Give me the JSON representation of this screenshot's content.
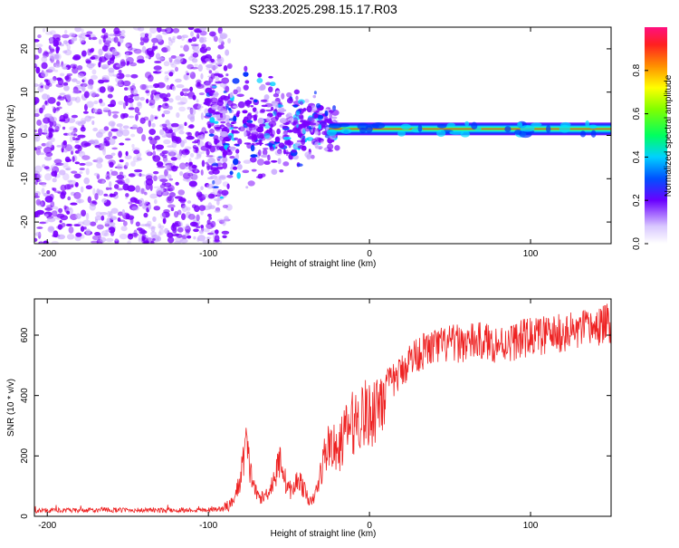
{
  "title": "S233.2025.298.15.17.R03",
  "colors": {
    "snr_line": "#ee2222",
    "band_core": "#ff1a1a",
    "noise_purple": "#7a00ff",
    "noise_light": "#c9a8ff"
  },
  "chart_data": [
    {
      "type": "heatmap",
      "name": "spectrogram",
      "title": "S233.2025.298.15.17.R03",
      "xlabel": "Height of straight line (km)",
      "ylabel": "Frequency (Hz)",
      "xlim": [
        -208,
        150
      ],
      "ylim": [
        -25,
        25
      ],
      "xticks": [
        -200,
        -100,
        0,
        100
      ],
      "yticks": [
        20,
        10,
        0,
        -10,
        -20
      ],
      "colorbar": {
        "label": "Normalized spectral amplitude",
        "range": [
          0,
          1
        ],
        "ticks": [
          "0.0",
          "0.2",
          "0.4",
          "0.6",
          "0.8"
        ],
        "tick_values": [
          0.0,
          0.2,
          0.4,
          0.6,
          0.8
        ]
      },
      "signal_band": {
        "center_frequency_hz": 1.5,
        "onset_height_km": -25,
        "end_height_km": 150,
        "peak_amplitude": 1.0
      },
      "noise_region_heights_km": [
        -208,
        -95
      ]
    },
    {
      "type": "line",
      "name": "snr",
      "xlabel": "Height of straight line (km)",
      "ylabel": "SNR (10 * v/v)",
      "xlim": [
        -208,
        150
      ],
      "ylim": [
        0,
        720
      ],
      "xticks": [
        -200,
        -100,
        0,
        100
      ],
      "yticks": [
        0,
        200,
        400,
        600
      ],
      "series": [
        {
          "name": "SNR",
          "x": [
            -208,
            -200,
            -180,
            -160,
            -140,
            -120,
            -100,
            -90,
            -85,
            -80,
            -77,
            -74,
            -70,
            -66,
            -62,
            -58,
            -55,
            -52,
            -48,
            -44,
            -40,
            -36,
            -32,
            -28,
            -24,
            -20,
            -16,
            -12,
            -8,
            -4,
            0,
            5,
            10,
            15,
            20,
            25,
            30,
            40,
            50,
            60,
            70,
            80,
            90,
            100,
            110,
            120,
            130,
            140,
            150
          ],
          "y": [
            18,
            20,
            19,
            21,
            20,
            20,
            22,
            25,
            45,
            120,
            250,
            150,
            70,
            60,
            90,
            140,
            200,
            110,
            80,
            130,
            80,
            40,
            100,
            200,
            250,
            200,
            270,
            300,
            320,
            340,
            330,
            380,
            430,
            450,
            480,
            520,
            540,
            560,
            570,
            575,
            580,
            570,
            580,
            595,
            600,
            605,
            615,
            625,
            640
          ]
        }
      ]
    }
  ]
}
